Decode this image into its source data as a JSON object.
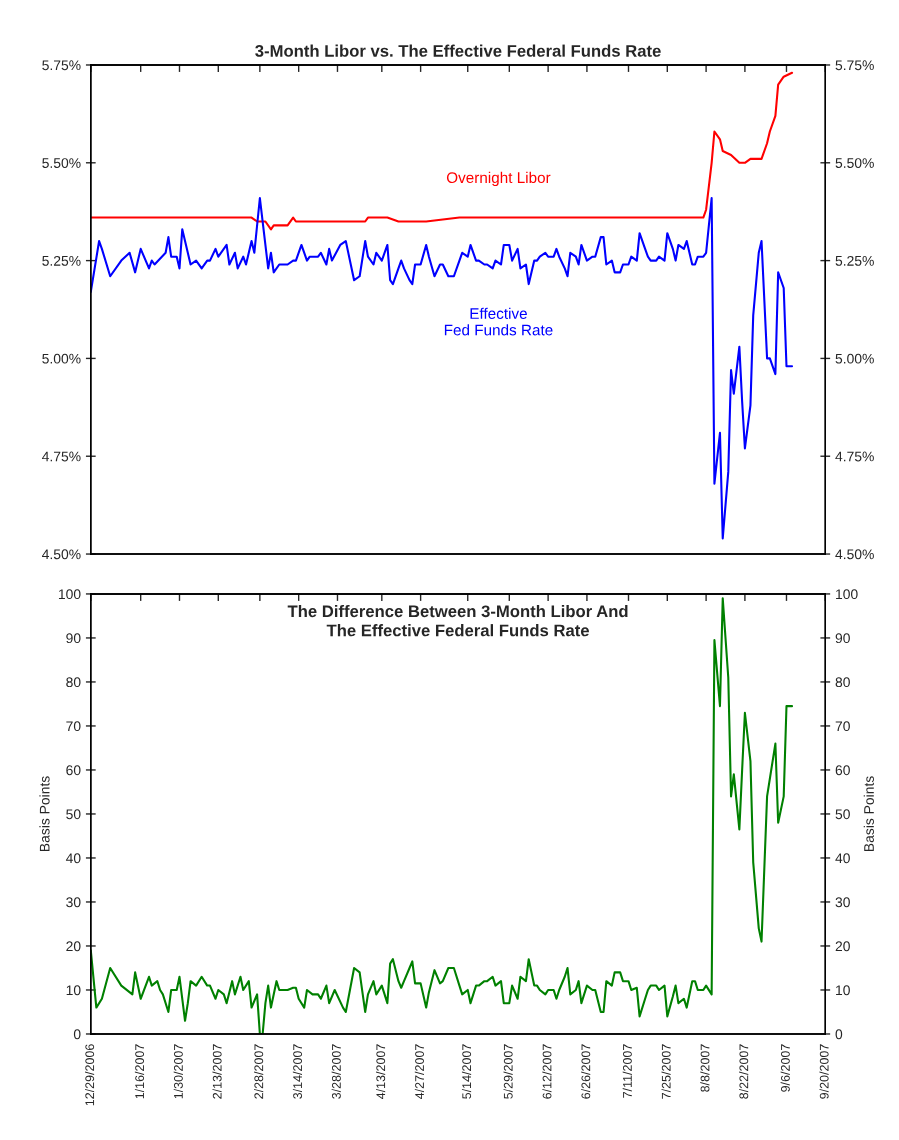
{
  "chart_data": [
    {
      "type": "line",
      "title": "3-Month Libor vs. The Effective Federal Funds Rate",
      "tick_labels": "y",
      "xlim": [
        "2006-12-29",
        "2007-09-20"
      ],
      "xticks": [
        {
          "value": "2006-12-29",
          "label": null
        },
        {
          "value": "2007-01-16",
          "label": null
        },
        {
          "value": "2007-01-30",
          "label": null
        },
        {
          "value": "2007-02-13",
          "label": null
        },
        {
          "value": "2007-02-28",
          "label": null
        },
        {
          "value": "2007-03-14",
          "label": null
        },
        {
          "value": "2007-03-28",
          "label": null
        },
        {
          "value": "2007-04-13",
          "label": null
        },
        {
          "value": "2007-04-27",
          "label": null
        },
        {
          "value": "2007-05-14",
          "label": null
        },
        {
          "value": "2007-05-29",
          "label": null
        },
        {
          "value": "2007-06-12",
          "label": null
        },
        {
          "value": "2007-06-26",
          "label": null
        },
        {
          "value": "2007-07-11",
          "label": null
        },
        {
          "value": "2007-07-25",
          "label": null
        },
        {
          "value": "2007-08-08",
          "label": null
        },
        {
          "value": "2007-08-22",
          "label": null
        },
        {
          "value": "2007-09-06",
          "label": null
        },
        {
          "value": "2007-09-20",
          "label": null
        }
      ],
      "ylim": [
        4.5,
        5.75
      ],
      "yticks": [
        {
          "value": 4.5,
          "label": "4.50%"
        },
        {
          "value": 4.75,
          "label": "4.75%"
        },
        {
          "value": 5.0,
          "label": "5.00%"
        },
        {
          "value": 5.25,
          "label": "5.25%"
        },
        {
          "value": 5.5,
          "label": "5.50%"
        },
        {
          "value": 5.75,
          "label": "5.75%"
        }
      ],
      "y2lim": [
        4.5,
        5.75
      ],
      "y2ticks": [
        {
          "value": 4.5,
          "label": "4.50%"
        },
        {
          "value": 4.75,
          "label": "4.75%"
        },
        {
          "value": 5.0,
          "label": "5.00%"
        },
        {
          "value": 5.25,
          "label": "5.25%"
        },
        {
          "value": 5.5,
          "label": "5.50%"
        },
        {
          "value": 5.75,
          "label": "5.75%"
        }
      ],
      "series": [
        {
          "name": "Overnight Libor",
          "color": "#ff0000",
          "x": [
            "2006-12-29",
            "2007-02-25",
            "2007-02-27",
            "2007-03-02",
            "2007-03-04",
            "2007-03-05",
            "2007-03-10",
            "2007-03-12",
            "2007-03-13",
            "2007-04-07",
            "2007-04-08",
            "2007-04-15",
            "2007-04-19",
            "2007-04-29",
            "2007-05-11",
            "2007-08-07",
            "2007-08-08",
            "2007-08-10",
            "2007-08-11",
            "2007-08-13",
            "2007-08-14",
            "2007-08-17",
            "2007-08-20",
            "2007-08-22",
            "2007-08-24",
            "2007-08-28",
            "2007-08-30",
            "2007-08-31",
            "2007-09-02",
            "2007-09-03",
            "2007-09-05",
            "2007-09-08"
          ],
          "values": [
            5.36,
            5.36,
            5.35,
            5.35,
            5.33,
            5.34,
            5.34,
            5.36,
            5.35,
            5.35,
            5.36,
            5.36,
            5.35,
            5.35,
            5.36,
            5.36,
            5.38,
            5.5,
            5.58,
            5.56,
            5.53,
            5.52,
            5.5,
            5.5,
            5.51,
            5.51,
            5.55,
            5.58,
            5.62,
            5.7,
            5.72,
            5.73
          ]
        },
        {
          "name": "Effective\nFed Funds Rate",
          "color": "#0000ff",
          "x": [
            "2006-12-29",
            "2007-01-01",
            "2007-01-02",
            "2007-01-05",
            "2007-01-09",
            "2007-01-12",
            "2007-01-14",
            "2007-01-16",
            "2007-01-19",
            "2007-01-20",
            "2007-01-21",
            "2007-01-25",
            "2007-01-26",
            "2007-01-27",
            "2007-01-29",
            "2007-01-30",
            "2007-01-31",
            "2007-02-03",
            "2007-02-05",
            "2007-02-07",
            "2007-02-09",
            "2007-02-10",
            "2007-02-12",
            "2007-02-13",
            "2007-02-16",
            "2007-02-17",
            "2007-02-19",
            "2007-02-20",
            "2007-02-22",
            "2007-02-23",
            "2007-02-25",
            "2007-02-26",
            "2007-02-28",
            "2007-03-03",
            "2007-03-04",
            "2007-03-05",
            "2007-03-07",
            "2007-03-10",
            "2007-03-12",
            "2007-03-13",
            "2007-03-15",
            "2007-03-17",
            "2007-03-18",
            "2007-03-21",
            "2007-03-22",
            "2007-03-24",
            "2007-03-25",
            "2007-03-26",
            "2007-03-29",
            "2007-03-31",
            "2007-04-03",
            "2007-04-05",
            "2007-04-07",
            "2007-04-08",
            "2007-04-10",
            "2007-04-11",
            "2007-04-13",
            "2007-04-15",
            "2007-04-16",
            "2007-04-17",
            "2007-04-19",
            "2007-04-20",
            "2007-04-21",
            "2007-04-23",
            "2007-04-24",
            "2007-04-25",
            "2007-04-27",
            "2007-04-29",
            "2007-04-30",
            "2007-05-02",
            "2007-05-04",
            "2007-05-05",
            "2007-05-07",
            "2007-05-09",
            "2007-05-11",
            "2007-05-12",
            "2007-05-14",
            "2007-05-15",
            "2007-05-17",
            "2007-05-18",
            "2007-05-20",
            "2007-05-21",
            "2007-05-23",
            "2007-05-24",
            "2007-05-26",
            "2007-05-27",
            "2007-05-29",
            "2007-05-30",
            "2007-06-01",
            "2007-06-02",
            "2007-06-04",
            "2007-06-05",
            "2007-06-07",
            "2007-06-08",
            "2007-06-09",
            "2007-06-11",
            "2007-06-12",
            "2007-06-14",
            "2007-06-15",
            "2007-06-16",
            "2007-06-18",
            "2007-06-19",
            "2007-06-20",
            "2007-06-22",
            "2007-06-23",
            "2007-06-24",
            "2007-06-26",
            "2007-06-28",
            "2007-06-29",
            "2007-07-01",
            "2007-07-02",
            "2007-07-03",
            "2007-07-05",
            "2007-07-06",
            "2007-07-08",
            "2007-07-09",
            "2007-07-11",
            "2007-07-12",
            "2007-07-14",
            "2007-07-15",
            "2007-07-17",
            "2007-07-18",
            "2007-07-19",
            "2007-07-21",
            "2007-07-22",
            "2007-07-24",
            "2007-07-25",
            "2007-07-27",
            "2007-07-28",
            "2007-07-29",
            "2007-07-31",
            "2007-08-01",
            "2007-08-03",
            "2007-08-04",
            "2007-08-05",
            "2007-08-07",
            "2007-08-08",
            "2007-08-10",
            "2007-08-11",
            "2007-08-13",
            "2007-08-14",
            "2007-08-16",
            "2007-08-17",
            "2007-08-18",
            "2007-08-20",
            "2007-08-21",
            "2007-08-22",
            "2007-08-24",
            "2007-08-25",
            "2007-08-27",
            "2007-08-28",
            "2007-08-30",
            "2007-08-31",
            "2007-09-02",
            "2007-09-03",
            "2007-09-05",
            "2007-09-06",
            "2007-09-08"
          ],
          "values": [
            5.17,
            5.3,
            5.28,
            5.21,
            5.25,
            5.27,
            5.22,
            5.28,
            5.23,
            5.25,
            5.24,
            5.27,
            5.31,
            5.26,
            5.26,
            5.23,
            5.33,
            5.24,
            5.25,
            5.23,
            5.25,
            5.25,
            5.28,
            5.26,
            5.29,
            5.24,
            5.27,
            5.23,
            5.26,
            5.24,
            5.3,
            5.27,
            5.41,
            5.23,
            5.27,
            5.22,
            5.24,
            5.24,
            5.25,
            5.25,
            5.29,
            5.25,
            5.26,
            5.26,
            5.27,
            5.24,
            5.28,
            5.25,
            5.29,
            5.3,
            5.2,
            5.21,
            5.3,
            5.26,
            5.24,
            5.27,
            5.25,
            5.29,
            5.2,
            5.19,
            5.23,
            5.25,
            5.23,
            5.2,
            5.19,
            5.24,
            5.24,
            5.29,
            5.26,
            5.21,
            5.24,
            5.24,
            5.21,
            5.21,
            5.25,
            5.27,
            5.26,
            5.29,
            5.25,
            5.25,
            5.24,
            5.24,
            5.23,
            5.25,
            5.24,
            5.29,
            5.29,
            5.25,
            5.28,
            5.23,
            5.24,
            5.19,
            5.25,
            5.25,
            5.26,
            5.27,
            5.26,
            5.26,
            5.28,
            5.26,
            5.23,
            5.21,
            5.27,
            5.26,
            5.24,
            5.29,
            5.25,
            5.26,
            5.26,
            5.31,
            5.31,
            5.24,
            5.25,
            5.22,
            5.22,
            5.24,
            5.24,
            5.26,
            5.25,
            5.32,
            5.28,
            5.26,
            5.25,
            5.25,
            5.26,
            5.25,
            5.32,
            5.28,
            5.25,
            5.29,
            5.28,
            5.3,
            5.24,
            5.24,
            5.26,
            5.26,
            5.27,
            5.41,
            4.68,
            4.81,
            4.54,
            4.71,
            4.97,
            4.91,
            5.03,
            4.89,
            4.77,
            4.88,
            5.11,
            5.27,
            5.3,
            5.0,
            5.0,
            4.96,
            5.22,
            5.18,
            4.98,
            4.98
          ]
        }
      ]
    },
    {
      "type": "line",
      "title": "The Difference Between 3-Month Libor And\nThe Effective Federal Funds Rate",
      "ylabel": "Basis Points",
      "y2label": "Basis Points",
      "xlim": [
        "2006-12-29",
        "2007-09-20"
      ],
      "xticks": [
        {
          "value": "2006-12-29",
          "label": "12/29/2006"
        },
        {
          "value": "2007-01-16",
          "label": "1/16/2007"
        },
        {
          "value": "2007-01-30",
          "label": "1/30/2007"
        },
        {
          "value": "2007-02-13",
          "label": "2/13/2007"
        },
        {
          "value": "2007-02-28",
          "label": "2/28/2007"
        },
        {
          "value": "2007-03-14",
          "label": "3/14/2007"
        },
        {
          "value": "2007-03-28",
          "label": "3/28/2007"
        },
        {
          "value": "2007-04-13",
          "label": "4/13/2007"
        },
        {
          "value": "2007-04-27",
          "label": "4/27/2007"
        },
        {
          "value": "2007-05-14",
          "label": "5/14/2007"
        },
        {
          "value": "2007-05-29",
          "label": "5/29/2007"
        },
        {
          "value": "2007-06-12",
          "label": "6/12/2007"
        },
        {
          "value": "2007-06-26",
          "label": "6/26/2007"
        },
        {
          "value": "2007-07-11",
          "label": "7/11/2007"
        },
        {
          "value": "2007-07-25",
          "label": "7/25/2007"
        },
        {
          "value": "2007-08-08",
          "label": "8/8/2007"
        },
        {
          "value": "2007-08-22",
          "label": "8/22/2007"
        },
        {
          "value": "2007-09-06",
          "label": "9/6/2007"
        },
        {
          "value": "2007-09-20",
          "label": "9/20/2007"
        }
      ],
      "ylim": [
        0,
        100
      ],
      "yticks": [
        0,
        10,
        20,
        30,
        40,
        50,
        60,
        70,
        80,
        90,
        100
      ],
      "y2lim": [
        0,
        100
      ],
      "y2ticks": [
        0,
        10,
        20,
        30,
        40,
        50,
        60,
        70,
        80,
        90,
        100
      ],
      "series": [
        {
          "color": "#008000",
          "x": [
            "2006-12-29",
            "2006-12-31",
            "2007-01-02",
            "2007-01-05",
            "2007-01-09",
            "2007-01-13",
            "2007-01-14",
            "2007-01-16",
            "2007-01-19",
            "2007-01-20",
            "2007-01-22",
            "2007-01-23",
            "2007-01-24",
            "2007-01-26",
            "2007-01-27",
            "2007-01-29",
            "2007-01-30",
            "2007-02-01",
            "2007-02-02",
            "2007-02-03",
            "2007-02-05",
            "2007-02-07",
            "2007-02-09",
            "2007-02-10",
            "2007-02-12",
            "2007-02-13",
            "2007-02-15",
            "2007-02-16",
            "2007-02-18",
            "2007-02-19",
            "2007-02-21",
            "2007-02-22",
            "2007-02-24",
            "2007-02-25",
            "2007-02-27",
            "2007-02-28",
            "2007-03-01",
            "2007-03-02",
            "2007-03-03",
            "2007-03-04",
            "2007-03-06",
            "2007-03-07",
            "2007-03-10",
            "2007-03-12",
            "2007-03-13",
            "2007-03-14",
            "2007-03-16",
            "2007-03-17",
            "2007-03-19",
            "2007-03-21",
            "2007-03-22",
            "2007-03-24",
            "2007-03-25",
            "2007-03-27",
            "2007-03-30",
            "2007-03-31",
            "2007-04-03",
            "2007-04-05",
            "2007-04-07",
            "2007-04-08",
            "2007-04-10",
            "2007-04-11",
            "2007-04-13",
            "2007-04-15",
            "2007-04-16",
            "2007-04-17",
            "2007-04-19",
            "2007-04-20",
            "2007-04-21",
            "2007-04-23",
            "2007-04-24",
            "2007-04-25",
            "2007-04-27",
            "2007-04-29",
            "2007-04-30",
            "2007-05-02",
            "2007-05-04",
            "2007-05-05",
            "2007-05-07",
            "2007-05-09",
            "2007-05-11",
            "2007-05-12",
            "2007-05-14",
            "2007-05-15",
            "2007-05-17",
            "2007-05-18",
            "2007-05-20",
            "2007-05-21",
            "2007-05-23",
            "2007-05-24",
            "2007-05-26",
            "2007-05-27",
            "2007-05-29",
            "2007-05-30",
            "2007-06-01",
            "2007-06-02",
            "2007-06-04",
            "2007-06-05",
            "2007-06-07",
            "2007-06-08",
            "2007-06-09",
            "2007-06-11",
            "2007-06-12",
            "2007-06-14",
            "2007-06-15",
            "2007-06-16",
            "2007-06-18",
            "2007-06-19",
            "2007-06-20",
            "2007-06-22",
            "2007-06-23",
            "2007-06-24",
            "2007-06-26",
            "2007-06-28",
            "2007-06-29",
            "2007-07-01",
            "2007-07-02",
            "2007-07-03",
            "2007-07-05",
            "2007-07-06",
            "2007-07-08",
            "2007-07-09",
            "2007-07-11",
            "2007-07-12",
            "2007-07-14",
            "2007-07-15",
            "2007-07-17",
            "2007-07-18",
            "2007-07-19",
            "2007-07-21",
            "2007-07-22",
            "2007-07-24",
            "2007-07-25",
            "2007-07-27",
            "2007-07-28",
            "2007-07-29",
            "2007-07-31",
            "2007-08-01",
            "2007-08-03",
            "2007-08-04",
            "2007-08-05",
            "2007-08-07",
            "2007-08-08",
            "2007-08-10",
            "2007-08-11",
            "2007-08-13",
            "2007-08-14",
            "2007-08-16",
            "2007-08-17",
            "2007-08-18",
            "2007-08-20",
            "2007-08-21",
            "2007-08-22",
            "2007-08-24",
            "2007-08-25",
            "2007-08-27",
            "2007-08-28",
            "2007-08-30",
            "2007-08-31",
            "2007-09-02",
            "2007-09-03",
            "2007-09-05",
            "2007-09-06",
            "2007-09-08"
          ],
          "values": [
            19,
            6,
            8,
            15,
            11,
            9,
            14,
            8,
            13,
            11,
            12,
            10,
            9,
            5,
            10,
            10,
            13,
            3,
            7,
            12,
            11,
            13,
            11,
            11,
            8,
            10,
            9,
            7,
            12,
            9,
            13,
            10,
            12,
            6,
            9,
            0,
            0,
            7,
            11,
            6,
            12,
            10,
            10,
            10.5,
            10.5,
            8,
            6,
            10,
            9,
            9,
            8,
            11,
            7,
            10,
            6,
            5,
            15,
            14,
            5,
            9,
            12,
            9,
            11,
            7,
            16,
            17,
            12,
            10.5,
            12,
            15,
            16.5,
            11.5,
            11.5,
            6,
            9.5,
            14.5,
            11.5,
            12,
            15,
            15,
            11,
            9,
            10,
            7,
            11,
            11,
            12,
            12,
            13,
            11,
            12,
            7,
            7,
            11,
            8,
            13,
            12,
            17,
            11,
            11,
            10,
            9,
            10,
            10,
            8,
            10,
            13,
            15,
            9,
            10,
            12,
            7,
            11,
            10,
            10,
            5,
            5,
            12,
            11,
            14,
            14,
            12,
            12,
            10,
            10.5,
            4,
            8,
            10,
            11,
            11,
            10,
            11,
            4,
            8.5,
            11,
            7,
            8,
            6,
            12,
            12,
            10,
            10,
            11,
            9,
            89.5,
            74.5,
            99,
            81,
            54,
            59,
            46.5,
            60,
            73,
            62,
            39,
            24,
            21,
            54,
            58,
            66,
            48,
            54,
            74.5,
            74.5
          ]
        }
      ]
    }
  ]
}
